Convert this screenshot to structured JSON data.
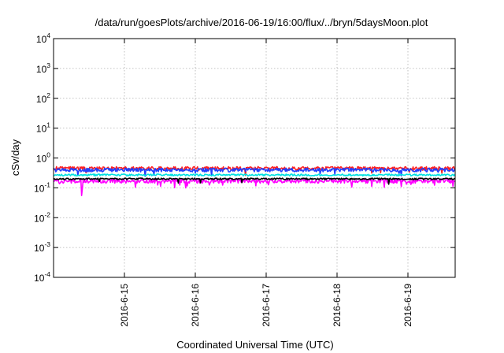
{
  "chart_data": {
    "type": "line",
    "title": "/data/run/goesPlots/archive/2016-06-19/16:00/flux/../bryn/5daysMoon.plot",
    "xlabel": "Coordinated Universal Time (UTC)",
    "ylabel": "cSv/day",
    "yscale": "log",
    "ylim": [
      0.0001,
      10000
    ],
    "xlim": [
      "2016-06-14 00:00",
      "2016-06-19 16:00"
    ],
    "grid": true,
    "legend": "none",
    "y_ticks": [
      {
        "value": 0.0001,
        "base": "10",
        "exp": "-4"
      },
      {
        "value": 0.001,
        "base": "10",
        "exp": "-3"
      },
      {
        "value": 0.01,
        "base": "10",
        "exp": "-2"
      },
      {
        "value": 0.1,
        "base": "10",
        "exp": "-1"
      },
      {
        "value": 1,
        "base": "10",
        "exp": "0"
      },
      {
        "value": 10,
        "base": "10",
        "exp": "1"
      },
      {
        "value": 100,
        "base": "10",
        "exp": "2"
      },
      {
        "value": 1000,
        "base": "10",
        "exp": "3"
      },
      {
        "value": 10000,
        "base": "10",
        "exp": "4"
      }
    ],
    "x_ticks": [
      {
        "date": "2016-06-15 00:00",
        "label": "2016-6-15"
      },
      {
        "date": "2016-06-16 00:00",
        "label": "2016-6-16"
      },
      {
        "date": "2016-06-17 00:00",
        "label": "2016-6-17"
      },
      {
        "date": "2016-06-18 00:00",
        "label": "2016-6-18"
      },
      {
        "date": "2016-06-19 00:00",
        "label": "2016-6-19"
      }
    ],
    "series": [
      {
        "color": "#ff00ff",
        "level": 0.17,
        "jitter": 0.16,
        "dips": 0.35
      },
      {
        "color": "#ff2020",
        "level": 0.45,
        "jitter": 0.14,
        "dips": 0.15
      },
      {
        "color": "#2040ff",
        "level": 0.4,
        "jitter": 0.14,
        "dips": 0.15
      },
      {
        "color": "#00e0e0",
        "level": 0.27,
        "jitter": 0.07,
        "dips": 0.05
      },
      {
        "color": "#000000",
        "level": 0.2,
        "jitter": 0.06,
        "dips": 0.05
      }
    ]
  }
}
